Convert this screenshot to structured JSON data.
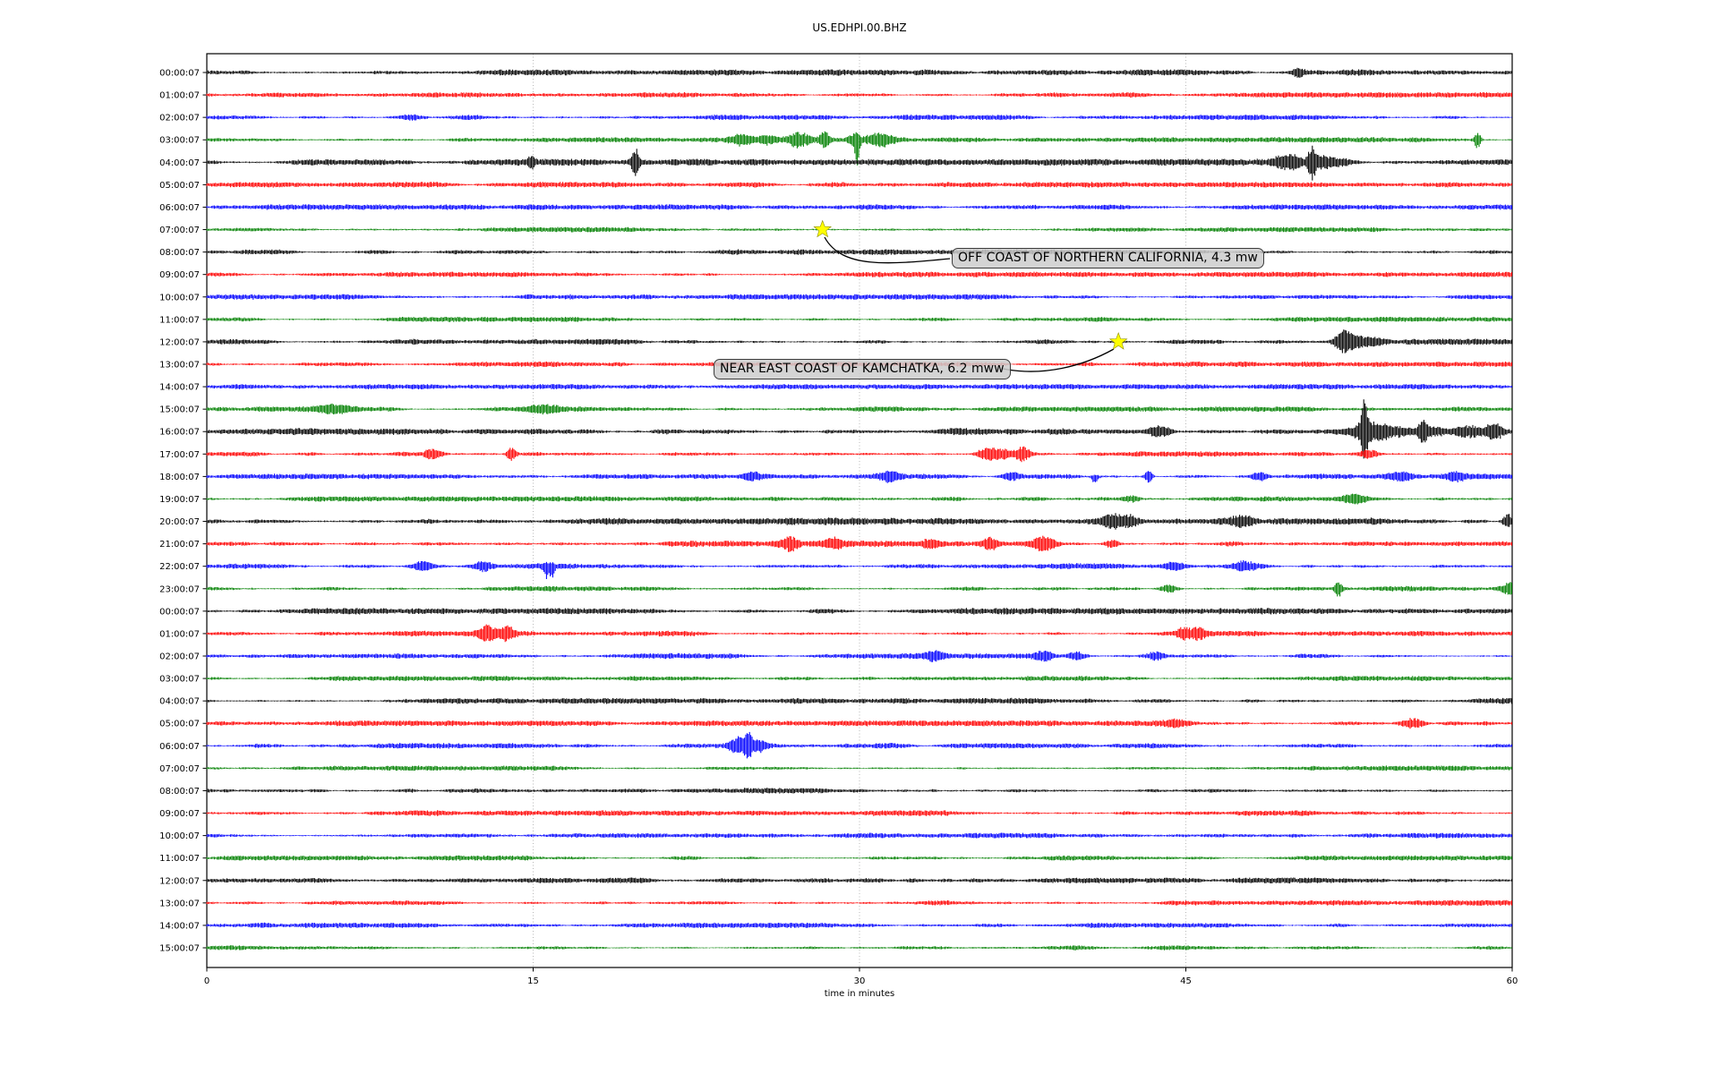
{
  "chart_data": {
    "type": "line",
    "subtype": "seismogram-dayplot",
    "title": "US.EDHPI.00.BHZ",
    "xlabel": "time in minutes",
    "xlim": [
      0,
      60
    ],
    "x_ticks": [
      0,
      15,
      30,
      45,
      60
    ],
    "grid": {
      "vertical_minutes": [
        15,
        30,
        45
      ],
      "style": "dotted",
      "color": "#b0b0b0"
    },
    "trace_color_cycle": [
      "#000000",
      "#ff0000",
      "#0000ff",
      "#008000"
    ],
    "rows": [
      {
        "label": "00:00:07",
        "color": "#000000",
        "amp": 2.7
      },
      {
        "label": "01:00:07",
        "color": "#ff0000",
        "amp": 2.3
      },
      {
        "label": "02:00:07",
        "color": "#0000ff",
        "amp": 2.3
      },
      {
        "label": "03:00:07",
        "color": "#008000",
        "amp": 2.2
      },
      {
        "label": "04:00:07",
        "color": "#000000",
        "amp": 2.9
      },
      {
        "label": "05:00:07",
        "color": "#ff0000",
        "amp": 2.4
      },
      {
        "label": "06:00:07",
        "color": "#0000ff",
        "amp": 2.3
      },
      {
        "label": "07:00:07",
        "color": "#008000",
        "amp": 2.2
      },
      {
        "label": "08:00:07",
        "color": "#000000",
        "amp": 2.5
      },
      {
        "label": "09:00:07",
        "color": "#ff0000",
        "amp": 2.3
      },
      {
        "label": "10:00:07",
        "color": "#0000ff",
        "amp": 2.3
      },
      {
        "label": "11:00:07",
        "color": "#008000",
        "amp": 2.2
      },
      {
        "label": "12:00:07",
        "color": "#000000",
        "amp": 2.6
      },
      {
        "label": "13:00:07",
        "color": "#ff0000",
        "amp": 2.3
      },
      {
        "label": "14:00:07",
        "color": "#0000ff",
        "amp": 2.2
      },
      {
        "label": "15:00:07",
        "color": "#008000",
        "amp": 2.2
      },
      {
        "label": "16:00:07",
        "color": "#000000",
        "amp": 3.1
      },
      {
        "label": "17:00:07",
        "color": "#ff0000",
        "amp": 2.5
      },
      {
        "label": "18:00:07",
        "color": "#0000ff",
        "amp": 2.4
      },
      {
        "label": "19:00:07",
        "color": "#008000",
        "amp": 2.3
      },
      {
        "label": "20:00:07",
        "color": "#000000",
        "amp": 3.2
      },
      {
        "label": "21:00:07",
        "color": "#ff0000",
        "amp": 2.7
      },
      {
        "label": "22:00:07",
        "color": "#0000ff",
        "amp": 2.6
      },
      {
        "label": "23:00:07",
        "color": "#008000",
        "amp": 2.3
      },
      {
        "label": "00:00:07",
        "color": "#000000",
        "amp": 2.8
      },
      {
        "label": "01:00:07",
        "color": "#ff0000",
        "amp": 2.4
      },
      {
        "label": "02:00:07",
        "color": "#0000ff",
        "amp": 2.4
      },
      {
        "label": "03:00:07",
        "color": "#008000",
        "amp": 2.2
      },
      {
        "label": "04:00:07",
        "color": "#000000",
        "amp": 2.5
      },
      {
        "label": "05:00:07",
        "color": "#ff0000",
        "amp": 2.4
      },
      {
        "label": "06:00:07",
        "color": "#0000ff",
        "amp": 2.4
      },
      {
        "label": "07:00:07",
        "color": "#008000",
        "amp": 2.2
      },
      {
        "label": "08:00:07",
        "color": "#000000",
        "amp": 2.6
      },
      {
        "label": "09:00:07",
        "color": "#ff0000",
        "amp": 2.4
      },
      {
        "label": "10:00:07",
        "color": "#0000ff",
        "amp": 2.3
      },
      {
        "label": "11:00:07",
        "color": "#008000",
        "amp": 2.2
      },
      {
        "label": "12:00:07",
        "color": "#000000",
        "amp": 2.5
      },
      {
        "label": "13:00:07",
        "color": "#ff0000",
        "amp": 2.4
      },
      {
        "label": "14:00:07",
        "color": "#0000ff",
        "amp": 2.3
      },
      {
        "label": "15:00:07",
        "color": "#008000",
        "amp": 2.2
      }
    ],
    "bursts": [
      {
        "row": 0,
        "minute": 50.2,
        "amp": 6,
        "width": 0.2
      },
      {
        "row": 2,
        "minute": 9.4,
        "amp": 3.5,
        "width": 0.4
      },
      {
        "row": 3,
        "minute": 24.6,
        "amp": 5,
        "width": 0.4
      },
      {
        "row": 3,
        "minute": 25.8,
        "amp": 4,
        "width": 0.3
      },
      {
        "row": 3,
        "minute": 27.2,
        "amp": 8,
        "width": 0.35
      },
      {
        "row": 3,
        "minute": 28.4,
        "amp": 10,
        "width": 0.15
      },
      {
        "row": 3,
        "minute": 29.7,
        "amp": 5,
        "width": 0.2
      },
      {
        "row": 3,
        "minute": 29.9,
        "amp": 26,
        "width": 0.09,
        "skew": -1
      },
      {
        "row": 3,
        "minute": 31.0,
        "amp": 7,
        "width": 0.5
      },
      {
        "row": 3,
        "minute": 58.4,
        "amp": 9,
        "width": 0.12
      },
      {
        "row": 4,
        "minute": 14.9,
        "amp": 6,
        "width": 0.12
      },
      {
        "row": 4,
        "minute": 19.7,
        "amp": 15,
        "width": 0.13
      },
      {
        "row": 4,
        "minute": 49.4,
        "amp": 5,
        "width": 0.35
      },
      {
        "row": 4,
        "minute": 50.0,
        "amp": 6,
        "width": 0.25
      },
      {
        "row": 4,
        "minute": 50.8,
        "amp": 17,
        "width": 0.14
      },
      {
        "row": 4,
        "minute": 51.3,
        "amp": 7,
        "width": 0.4
      },
      {
        "row": 4,
        "minute": 52.2,
        "amp": 4,
        "width": 0.5
      },
      {
        "row": 12,
        "minute": 52.3,
        "amp": 11,
        "width": 0.3
      },
      {
        "row": 12,
        "minute": 53.0,
        "amp": 5,
        "width": 0.8
      },
      {
        "row": 15,
        "minute": 5.8,
        "amp": 4,
        "width": 0.6
      },
      {
        "row": 15,
        "minute": 15.5,
        "amp": 4,
        "width": 0.5
      },
      {
        "row": 16,
        "minute": 43.8,
        "amp": 5,
        "width": 0.4
      },
      {
        "row": 16,
        "minute": 53.2,
        "amp": 28,
        "width": 0.12
      },
      {
        "row": 16,
        "minute": 53.7,
        "amp": 9,
        "width": 1.0
      },
      {
        "row": 16,
        "minute": 55.9,
        "amp": 11,
        "width": 0.15
      },
      {
        "row": 16,
        "minute": 56.4,
        "amp": 5,
        "width": 0.5
      },
      {
        "row": 16,
        "minute": 58.0,
        "amp": 7,
        "width": 0.5
      },
      {
        "row": 16,
        "minute": 59.2,
        "amp": 9,
        "width": 0.3
      },
      {
        "row": 17,
        "minute": 10.4,
        "amp": 5,
        "width": 0.3
      },
      {
        "row": 17,
        "minute": 14.0,
        "amp": 8,
        "width": 0.15
      },
      {
        "row": 17,
        "minute": 35.9,
        "amp": 7,
        "width": 0.3
      },
      {
        "row": 17,
        "minute": 36.6,
        "amp": 5,
        "width": 0.3
      },
      {
        "row": 17,
        "minute": 37.5,
        "amp": 7,
        "width": 0.25
      },
      {
        "row": 17,
        "minute": 53.4,
        "amp": 5,
        "width": 0.3
      },
      {
        "row": 18,
        "minute": 25.1,
        "amp": 4,
        "width": 0.3
      },
      {
        "row": 18,
        "minute": 31.4,
        "amp": 5,
        "width": 0.3
      },
      {
        "row": 18,
        "minute": 37.0,
        "amp": 4,
        "width": 0.3
      },
      {
        "row": 18,
        "minute": 40.8,
        "amp": 7,
        "width": 0.12,
        "skew": -1
      },
      {
        "row": 18,
        "minute": 43.3,
        "amp": 7,
        "width": 0.12
      },
      {
        "row": 18,
        "minute": 48.4,
        "amp": 5,
        "width": 0.25
      },
      {
        "row": 18,
        "minute": 54.9,
        "amp": 4,
        "width": 0.4
      },
      {
        "row": 18,
        "minute": 57.4,
        "amp": 5,
        "width": 0.3
      },
      {
        "row": 19,
        "minute": 42.5,
        "amp": 4,
        "width": 0.3
      },
      {
        "row": 19,
        "minute": 52.8,
        "amp": 4,
        "width": 0.4
      },
      {
        "row": 20,
        "minute": 41.6,
        "amp": 6,
        "width": 0.3
      },
      {
        "row": 20,
        "minute": 42.4,
        "amp": 6,
        "width": 0.25
      },
      {
        "row": 20,
        "minute": 47.5,
        "amp": 4,
        "width": 0.4
      },
      {
        "row": 20,
        "minute": 59.8,
        "amp": 8,
        "width": 0.15
      },
      {
        "row": 21,
        "minute": 26.8,
        "amp": 7,
        "width": 0.3
      },
      {
        "row": 21,
        "minute": 28.8,
        "amp": 5,
        "width": 0.3
      },
      {
        "row": 21,
        "minute": 33.2,
        "amp": 4,
        "width": 0.3
      },
      {
        "row": 21,
        "minute": 36.0,
        "amp": 7,
        "width": 0.25
      },
      {
        "row": 21,
        "minute": 38.5,
        "amp": 8,
        "width": 0.4
      },
      {
        "row": 21,
        "minute": 41.6,
        "amp": 5,
        "width": 0.25
      },
      {
        "row": 22,
        "minute": 9.9,
        "amp": 5,
        "width": 0.35
      },
      {
        "row": 22,
        "minute": 12.7,
        "amp": 5,
        "width": 0.3
      },
      {
        "row": 22,
        "minute": 15.6,
        "amp": 12,
        "width": 0.09,
        "skew": -1
      },
      {
        "row": 22,
        "minute": 15.85,
        "amp": 12,
        "width": 0.09,
        "skew": -1
      },
      {
        "row": 22,
        "minute": 44.5,
        "amp": 4,
        "width": 0.4
      },
      {
        "row": 22,
        "minute": 47.7,
        "amp": 6,
        "width": 0.5
      },
      {
        "row": 23,
        "minute": 44.2,
        "amp": 4,
        "width": 0.3
      },
      {
        "row": 23,
        "minute": 52.0,
        "amp": 9,
        "width": 0.12
      },
      {
        "row": 23,
        "minute": 59.9,
        "amp": 6,
        "width": 0.3
      },
      {
        "row": 25,
        "minute": 12.9,
        "amp": 8,
        "width": 0.3
      },
      {
        "row": 25,
        "minute": 13.8,
        "amp": 7,
        "width": 0.25
      },
      {
        "row": 25,
        "minute": 44.9,
        "amp": 7,
        "width": 0.25
      },
      {
        "row": 25,
        "minute": 45.6,
        "amp": 6,
        "width": 0.25
      },
      {
        "row": 26,
        "minute": 33.4,
        "amp": 5,
        "width": 0.35
      },
      {
        "row": 26,
        "minute": 38.5,
        "amp": 5,
        "width": 0.3
      },
      {
        "row": 26,
        "minute": 40.0,
        "amp": 5,
        "width": 0.3
      },
      {
        "row": 26,
        "minute": 43.6,
        "amp": 5,
        "width": 0.35
      },
      {
        "row": 29,
        "minute": 44.4,
        "amp": 3,
        "width": 0.4
      },
      {
        "row": 29,
        "minute": 55.4,
        "amp": 6,
        "width": 0.4
      },
      {
        "row": 30,
        "minute": 24.4,
        "amp": 8,
        "width": 0.3
      },
      {
        "row": 30,
        "minute": 24.9,
        "amp": 14,
        "width": 0.12
      },
      {
        "row": 30,
        "minute": 25.4,
        "amp": 6,
        "width": 0.3
      }
    ],
    "annotations": [
      {
        "text": "OFF COAST OF NORTHERN CALIFORNIA, 4.3 mw",
        "marker": "star",
        "marker_color": "#ffff00",
        "row": 7,
        "minute": 28.3
      },
      {
        "text": "NEAR EAST COAST OF KAMCHATKA, 6.2 mww",
        "marker": "star",
        "marker_color": "#ffff00",
        "row": 12,
        "minute": 41.9
      }
    ]
  }
}
